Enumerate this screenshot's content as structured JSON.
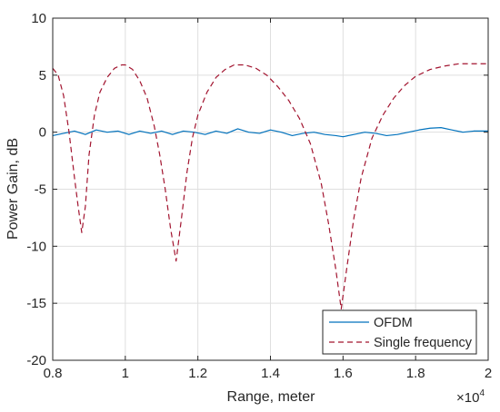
{
  "chart_data": {
    "type": "line",
    "xlabel": "Range, meter",
    "ylabel": "Power Gain, dB",
    "x_multiplier_label": "×10",
    "x_multiplier_exponent": "4",
    "xlim": [
      8000,
      20000
    ],
    "ylim": [
      -20,
      10
    ],
    "x_ticks": [
      8000,
      10000,
      12000,
      14000,
      16000,
      18000,
      20000
    ],
    "x_tick_labels": [
      "0.8",
      "1",
      "1.2",
      "1.4",
      "1.6",
      "1.8",
      "2"
    ],
    "y_ticks": [
      -20,
      -15,
      -10,
      -5,
      0,
      5,
      10
    ],
    "y_tick_labels": [
      "-20",
      "-15",
      "-10",
      "-5",
      "0",
      "5",
      "10"
    ],
    "grid": true,
    "legend_position": "bottom-right",
    "series": [
      {
        "name": "OFDM",
        "color": "#0072bd",
        "style": "solid",
        "x": [
          8000,
          8300,
          8600,
          8900,
          9200,
          9500,
          9800,
          10100,
          10400,
          10700,
          11000,
          11300,
          11600,
          11900,
          12200,
          12500,
          12800,
          13100,
          13400,
          13700,
          14000,
          14300,
          14600,
          14900,
          15200,
          15500,
          15800,
          16000,
          16300,
          16600,
          16900,
          17200,
          17500,
          17800,
          18100,
          18400,
          18700,
          19000,
          19300,
          19600,
          20000
        ],
        "y": [
          -0.3,
          -0.1,
          0.1,
          -0.2,
          0.2,
          0.0,
          0.1,
          -0.2,
          0.1,
          -0.1,
          0.1,
          -0.2,
          0.1,
          0.0,
          -0.2,
          0.1,
          -0.1,
          0.3,
          0.0,
          -0.1,
          0.2,
          0.0,
          -0.3,
          -0.1,
          0.0,
          -0.2,
          -0.3,
          -0.4,
          -0.2,
          0.0,
          -0.1,
          -0.3,
          -0.2,
          0.0,
          0.2,
          0.35,
          0.4,
          0.2,
          0.0,
          0.1,
          0.1
        ]
      },
      {
        "name": "Single frequency",
        "color": "#a2142f",
        "style": "dashed",
        "x": [
          8000,
          8150,
          8300,
          8450,
          8600,
          8700,
          8800,
          8900,
          9000,
          9150,
          9300,
          9500,
          9700,
          9900,
          10000,
          10200,
          10400,
          10600,
          10800,
          10950,
          11100,
          11250,
          11400,
          11550,
          11700,
          11850,
          12000,
          12250,
          12500,
          12750,
          13000,
          13300,
          13600,
          13900,
          14200,
          14500,
          14800,
          15100,
          15400,
          15600,
          15800,
          15950,
          16100,
          16300,
          16500,
          16800,
          17100,
          17400,
          17700,
          18000,
          18400,
          18800,
          19200,
          19600,
          20000
        ],
        "y": [
          5.6,
          5.0,
          3.2,
          0.0,
          -4.0,
          -6.5,
          -8.8,
          -6.5,
          -2.0,
          1.5,
          3.5,
          4.8,
          5.6,
          5.9,
          5.9,
          5.5,
          4.5,
          3.0,
          0.5,
          -2.0,
          -5.0,
          -8.5,
          -11.3,
          -7.5,
          -3.5,
          -0.5,
          1.5,
          3.5,
          4.8,
          5.5,
          5.9,
          5.9,
          5.6,
          5.0,
          4.0,
          2.8,
          1.2,
          -1.0,
          -4.5,
          -8.0,
          -12.0,
          -15.5,
          -12.0,
          -7.5,
          -4.0,
          -0.5,
          1.5,
          3.0,
          4.1,
          4.9,
          5.5,
          5.8,
          6.0,
          6.0,
          6.0
        ]
      }
    ]
  }
}
